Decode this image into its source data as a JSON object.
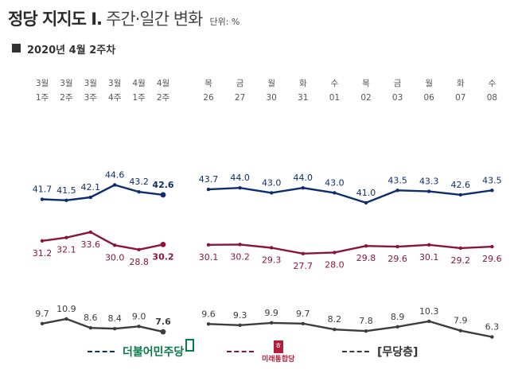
{
  "title": {
    "main": "정당 지지도 Ⅰ.",
    "sub": "주간·일간 변화",
    "unit": "단위: %"
  },
  "subtitle": "2020년 4월 2주차",
  "colors": {
    "dem": "#0e2d6e",
    "ufp": "#8a1538",
    "none": "#3c3c3c",
    "dem_logo": "#0a7a4a"
  },
  "chart_data": {
    "type": "line",
    "weekly": {
      "categories": [
        [
          "3월",
          "1주"
        ],
        [
          "3월",
          "2주"
        ],
        [
          "3월",
          "3주"
        ],
        [
          "3월",
          "4주"
        ],
        [
          "4월",
          "1주"
        ],
        [
          "4월",
          "2주"
        ]
      ],
      "series": [
        {
          "key": "dem",
          "name": "더불어민주당",
          "values": [
            41.7,
            41.5,
            42.1,
            44.6,
            43.2,
            42.6
          ]
        },
        {
          "key": "ufp",
          "name": "미래통합당",
          "values": [
            31.2,
            32.1,
            33.6,
            30.0,
            28.8,
            30.2
          ]
        },
        {
          "key": "none",
          "name": "[무당층]",
          "values": [
            9.7,
            10.9,
            8.6,
            8.4,
            9.0,
            7.6
          ]
        }
      ]
    },
    "daily": {
      "categories": [
        [
          "목",
          "26"
        ],
        [
          "금",
          "27"
        ],
        [
          "월",
          "30"
        ],
        [
          "화",
          "31"
        ],
        [
          "수",
          "01"
        ],
        [
          "목",
          "02"
        ],
        [
          "금",
          "03"
        ],
        [
          "월",
          "06"
        ],
        [
          "화",
          "07"
        ],
        [
          "수",
          "08"
        ]
      ],
      "series": [
        {
          "key": "dem",
          "name": "더불어민주당",
          "values": [
            43.7,
            44.0,
            43.0,
            44.0,
            43.0,
            41.0,
            43.5,
            43.3,
            42.6,
            43.5
          ]
        },
        {
          "key": "ufp",
          "name": "미래통합당",
          "values": [
            30.1,
            30.2,
            29.3,
            27.7,
            28.0,
            29.8,
            29.6,
            30.1,
            29.2,
            29.6
          ]
        },
        {
          "key": "none",
          "name": "[무당층]",
          "values": [
            9.6,
            9.3,
            9.9,
            9.7,
            8.2,
            7.8,
            8.9,
            10.3,
            7.9,
            6.3
          ]
        }
      ]
    }
  },
  "legend": [
    {
      "key": "dem",
      "label": "더불어민주당"
    },
    {
      "key": "ufp",
      "label": "미래통합당"
    },
    {
      "key": "none",
      "label": "[무당층]"
    }
  ],
  "logos": {
    "ufp_symbol": "ㅎ"
  }
}
